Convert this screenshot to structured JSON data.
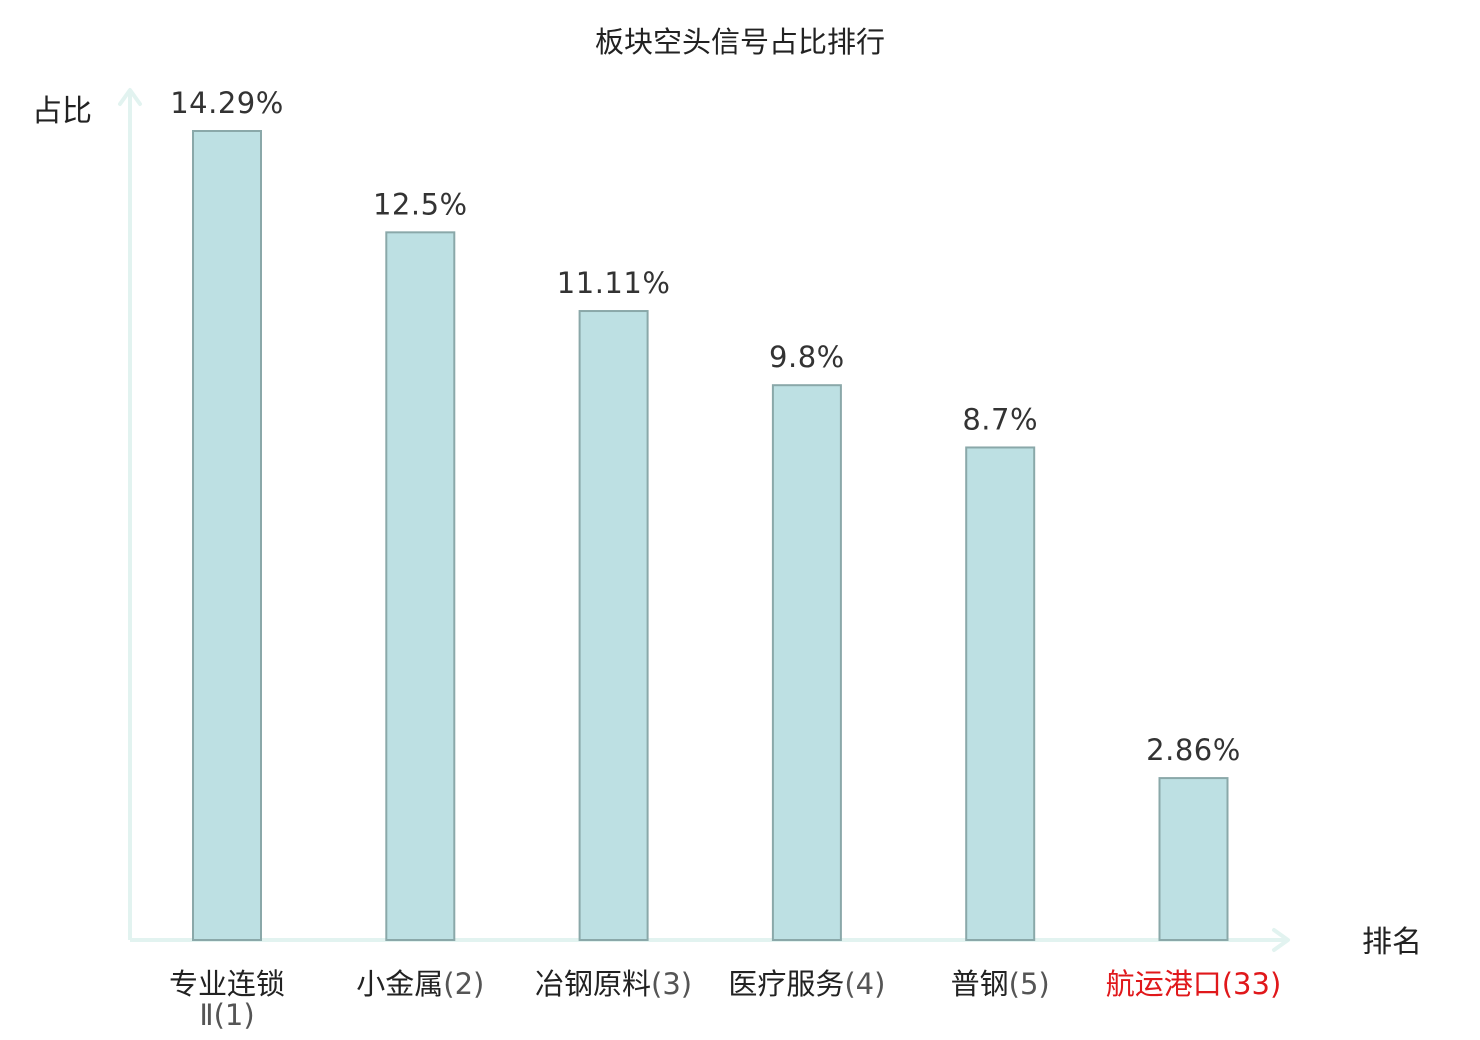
{
  "chart_data": {
    "type": "bar",
    "title": "板块空头信号占比排行",
    "ylabel": "占比",
    "xlabel": "排名",
    "categories": [
      {
        "name": "专业连锁Ⅱ",
        "rank": "(1)",
        "highlight": false
      },
      {
        "name": "小金属",
        "rank": "(2)",
        "highlight": false
      },
      {
        "name": "冶钢原料",
        "rank": "(3)",
        "highlight": false
      },
      {
        "name": "医疗服务",
        "rank": "(4)",
        "highlight": false
      },
      {
        "name": "普钢",
        "rank": "(5)",
        "highlight": false
      },
      {
        "name": "航运港口",
        "rank": "(33)",
        "highlight": true
      }
    ],
    "values": [
      14.29,
      12.5,
      11.11,
      9.8,
      8.7,
      2.86
    ],
    "value_labels": [
      "14.29%",
      "12.5%",
      "11.11%",
      "9.8%",
      "8.7%",
      "2.86%"
    ],
    "ylim": [
      0,
      15
    ],
    "grid": false,
    "legend": "none",
    "colors": {
      "bar_fill": "#bde0e3",
      "bar_stroke": "#8aa8a9",
      "axis": "#e2f3f0",
      "text": "#333333",
      "rank_text": "#555555",
      "highlight": "#e0181b"
    }
  }
}
